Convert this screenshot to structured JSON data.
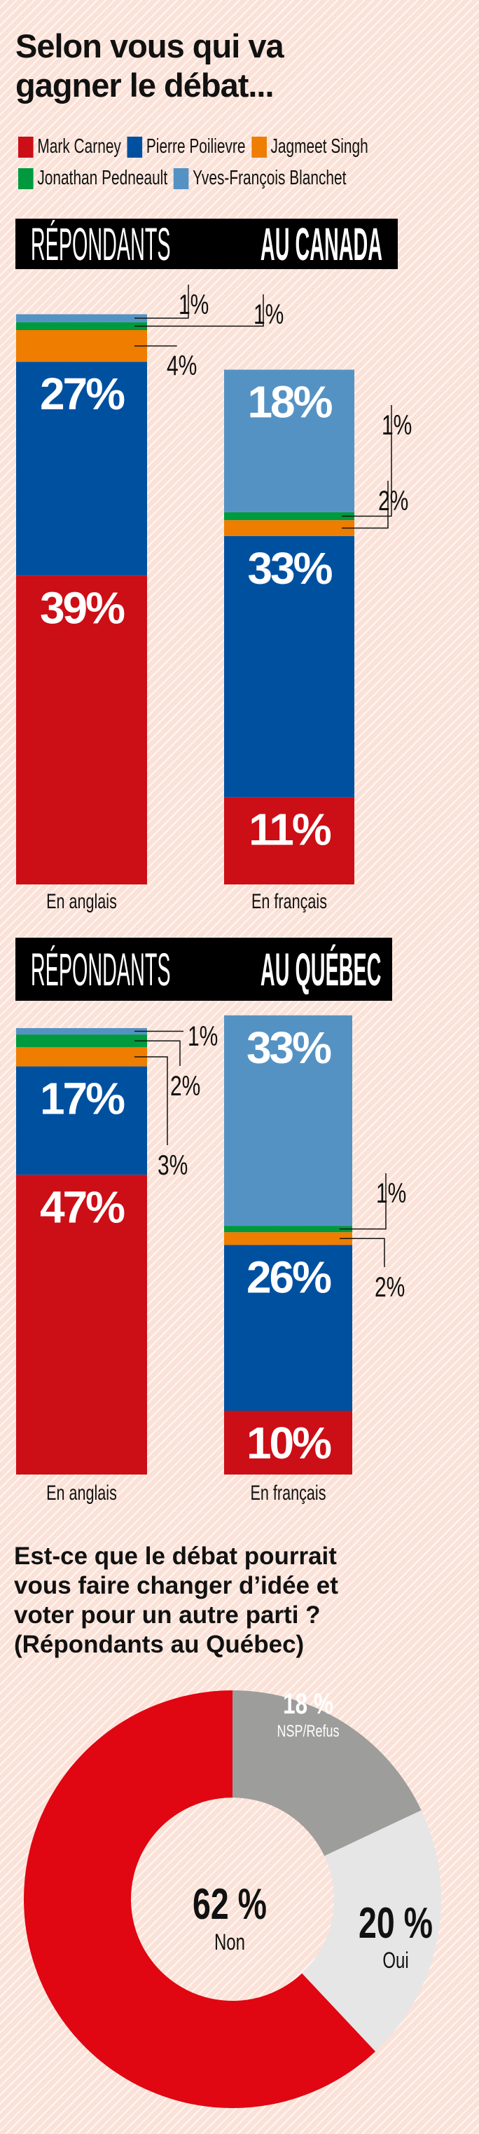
{
  "title_lines": [
    "Selon vous qui va",
    "gagner le débat..."
  ],
  "legend": [
    {
      "name": "Mark Carney",
      "color": "#cc0e16"
    },
    {
      "name": "Pierre Poilievre",
      "color": "#0050a0"
    },
    {
      "name": "Jagmeet Singh",
      "color": "#ee7d00"
    },
    {
      "name": "Jonathan Pedneault",
      "color": "#009a3e"
    },
    {
      "name": "Yves-François Blanchet",
      "color": "#5592c4"
    }
  ],
  "chart_data": [
    {
      "type": "bar",
      "stacked": true,
      "title_light": "RÉPONDANTS",
      "title_bold": "AU CANADA",
      "categories": [
        "En anglais",
        "En français"
      ],
      "series": [
        {
          "name": "Mark Carney",
          "values": [
            39,
            11
          ]
        },
        {
          "name": "Pierre Poilievre",
          "values": [
            27,
            33
          ]
        },
        {
          "name": "Jagmeet Singh",
          "values": [
            4,
            2
          ]
        },
        {
          "name": "Jonathan Pedneault",
          "values": [
            1,
            1
          ]
        },
        {
          "name": "Yves-François Blanchet",
          "values": [
            1,
            18
          ]
        }
      ]
    },
    {
      "type": "bar",
      "stacked": true,
      "title_light": "RÉPONDANTS",
      "title_bold": "AU QUÉBEC",
      "categories": [
        "En anglais",
        "En français"
      ],
      "series": [
        {
          "name": "Mark Carney",
          "values": [
            47,
            10
          ]
        },
        {
          "name": "Pierre Poilievre",
          "values": [
            17,
            26
          ]
        },
        {
          "name": "Jagmeet Singh",
          "values": [
            3,
            2
          ]
        },
        {
          "name": "Jonathan Pedneault",
          "values": [
            2,
            1
          ]
        },
        {
          "name": "Yves-François Blanchet",
          "values": [
            1,
            33
          ]
        }
      ]
    },
    {
      "type": "pie",
      "donut": true,
      "title_lines": [
        "Est-ce que le débat pourrait",
        "vous faire changer d’idée et",
        "voter pour un autre parti ?",
        "(Répondants au Québec)"
      ],
      "slices": [
        {
          "label": "NSP/Refus",
          "value": 18,
          "value_text": "18 %",
          "color": "#9d9d9b",
          "text_color": "#ffffff"
        },
        {
          "label": "Oui",
          "value": 20,
          "value_text": "20 %",
          "color": "#e6e6e6",
          "text_color": "#111111"
        },
        {
          "label": "Non",
          "value": 62,
          "value_text": "62 %",
          "color": "#e00612",
          "text_color": "#111111"
        }
      ]
    }
  ]
}
